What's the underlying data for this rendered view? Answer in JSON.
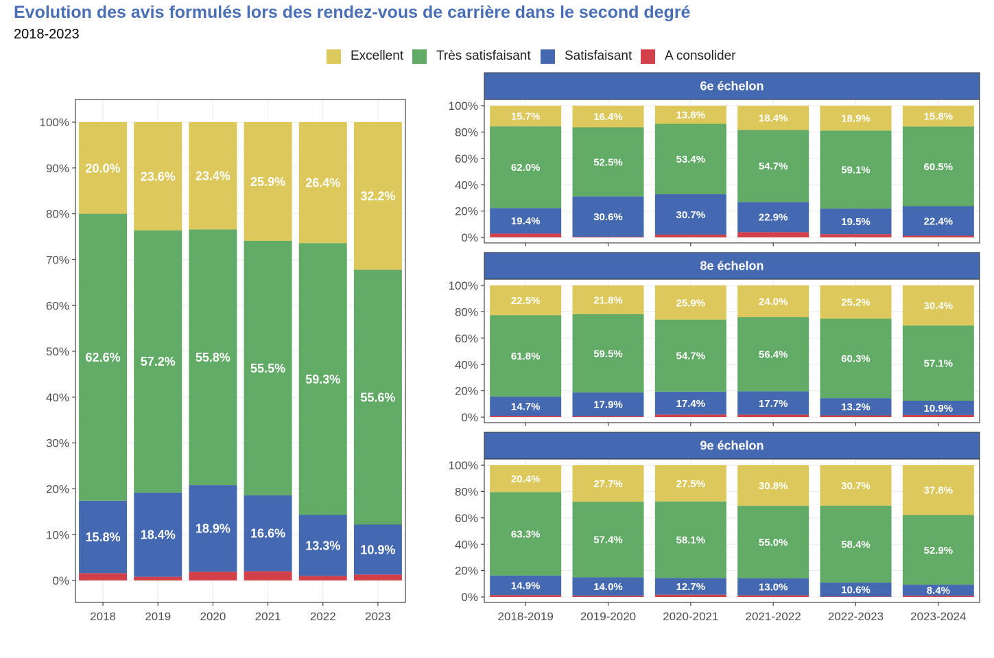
{
  "header": {
    "title": "Evolution des avis formulés lors des rendez-vous de carrière dans le second degré",
    "subtitle": "2018-2023"
  },
  "legend": {
    "items": [
      {
        "label": "Excellent",
        "color": "#dcc85b"
      },
      {
        "label": "Très satisfaisant",
        "color": "#61ab66"
      },
      {
        "label": "Satisfaisant",
        "color": "#4469b0"
      },
      {
        "label": "A consolider",
        "color": "#d2414a"
      }
    ]
  },
  "chart_data": [
    {
      "type": "bar",
      "stacked": true,
      "categories": [
        "2018",
        "2019",
        "2020",
        "2021",
        "2022",
        "2023"
      ],
      "ylim": [
        0,
        100
      ],
      "yticks": [
        "0%",
        "10%",
        "20%",
        "30%",
        "40%",
        "50%",
        "60%",
        "70%",
        "80%",
        "90%",
        "100%"
      ],
      "series": [
        {
          "name": "A consolider",
          "color": "#d2414a",
          "values": [
            1.6,
            0.8,
            1.9,
            2.0,
            1.0,
            1.3
          ],
          "labels": [
            "",
            "",
            "",
            "",
            "",
            ""
          ]
        },
        {
          "name": "Satisfaisant",
          "color": "#4469b0",
          "values": [
            15.8,
            18.4,
            18.9,
            16.6,
            13.3,
            10.9
          ],
          "labels": [
            "15.8%",
            "18.4%",
            "18.9%",
            "16.6%",
            "13.3%",
            "10.9%"
          ]
        },
        {
          "name": "Très satisfaisant",
          "color": "#61ab66",
          "values": [
            62.6,
            57.2,
            55.8,
            55.5,
            59.3,
            55.6
          ],
          "labels": [
            "62.6%",
            "57.2%",
            "55.8%",
            "55.5%",
            "59.3%",
            "55.6%"
          ]
        },
        {
          "name": "Excellent",
          "color": "#dcc85b",
          "values": [
            20.0,
            23.6,
            23.4,
            25.9,
            26.4,
            32.2
          ],
          "labels": [
            "20.0%",
            "23.6%",
            "23.4%",
            "25.9%",
            "26.4%",
            "32.2%"
          ]
        }
      ]
    },
    {
      "type": "bar",
      "stacked": true,
      "facet": "6e échelon",
      "categories": [
        "2018-2019",
        "2019-2020",
        "2020-2021",
        "2021-2022",
        "2022-2023",
        "2023-2024"
      ],
      "ylim": [
        0,
        100
      ],
      "yticks": [
        "0%",
        "20%",
        "40%",
        "60%",
        "80%",
        "100%"
      ],
      "series": [
        {
          "name": "A consolider",
          "color": "#d2414a",
          "values": [
            2.9,
            0.5,
            2.1,
            4.0,
            2.5,
            1.3
          ],
          "labels": [
            "",
            "",
            "",
            "",
            "",
            ""
          ]
        },
        {
          "name": "Satisfaisant",
          "color": "#4469b0",
          "values": [
            19.4,
            30.6,
            30.7,
            22.9,
            19.5,
            22.4
          ],
          "labels": [
            "19.4%",
            "30.6%",
            "30.7%",
            "22.9%",
            "19.5%",
            "22.4%"
          ]
        },
        {
          "name": "Très satisfaisant",
          "color": "#61ab66",
          "values": [
            62.0,
            52.5,
            53.4,
            54.7,
            59.1,
            60.5
          ],
          "labels": [
            "62.0%",
            "52.5%",
            "53.4%",
            "54.7%",
            "59.1%",
            "60.5%"
          ]
        },
        {
          "name": "Excellent",
          "color": "#dcc85b",
          "values": [
            15.7,
            16.4,
            13.8,
            18.4,
            18.9,
            15.8
          ],
          "labels": [
            "15.7%",
            "16.4%",
            "13.8%",
            "18.4%",
            "18.9%",
            "15.8%"
          ]
        }
      ]
    },
    {
      "type": "bar",
      "stacked": true,
      "facet": "8e échelon",
      "categories": [
        "2018-2019",
        "2019-2020",
        "2020-2021",
        "2021-2022",
        "2022-2023",
        "2023-2024"
      ],
      "ylim": [
        0,
        100
      ],
      "yticks": [
        "0%",
        "20%",
        "40%",
        "60%",
        "80%",
        "100%"
      ],
      "series": [
        {
          "name": "A consolider",
          "color": "#d2414a",
          "values": [
            1.0,
            0.8,
            2.0,
            1.9,
            1.3,
            1.6
          ],
          "labels": [
            "",
            "",
            "",
            "",
            "",
            ""
          ]
        },
        {
          "name": "Satisfaisant",
          "color": "#4469b0",
          "values": [
            14.7,
            17.9,
            17.4,
            17.7,
            13.2,
            10.9
          ],
          "labels": [
            "14.7%",
            "17.9%",
            "17.4%",
            "17.7%",
            "13.2%",
            "10.9%"
          ]
        },
        {
          "name": "Très satisfaisant",
          "color": "#61ab66",
          "values": [
            61.8,
            59.5,
            54.7,
            56.4,
            60.3,
            57.1
          ],
          "labels": [
            "61.8%",
            "59.5%",
            "54.7%",
            "56.4%",
            "60.3%",
            "57.1%"
          ]
        },
        {
          "name": "Excellent",
          "color": "#dcc85b",
          "values": [
            22.5,
            21.8,
            25.9,
            24.0,
            25.2,
            30.4
          ],
          "labels": [
            "22.5%",
            "21.8%",
            "25.9%",
            "24.0%",
            "25.2%",
            "30.4%"
          ]
        }
      ]
    },
    {
      "type": "bar",
      "stacked": true,
      "facet": "9e échelon",
      "categories": [
        "2018-2019",
        "2019-2020",
        "2020-2021",
        "2021-2022",
        "2022-2023",
        "2023-2024"
      ],
      "ylim": [
        0,
        100
      ],
      "yticks": [
        "0%",
        "20%",
        "40%",
        "60%",
        "80%",
        "100%"
      ],
      "series": [
        {
          "name": "A consolider",
          "color": "#d2414a",
          "values": [
            1.4,
            0.9,
            1.7,
            1.2,
            0.3,
            0.9
          ],
          "labels": [
            "",
            "",
            "",
            "",
            "",
            ""
          ]
        },
        {
          "name": "Satisfaisant",
          "color": "#4469b0",
          "values": [
            14.9,
            14.0,
            12.7,
            13.0,
            10.6,
            8.4
          ],
          "labels": [
            "14.9%",
            "14.0%",
            "12.7%",
            "13.0%",
            "10.6%",
            "8.4%"
          ]
        },
        {
          "name": "Très satisfaisant",
          "color": "#61ab66",
          "values": [
            63.3,
            57.4,
            58.1,
            55.0,
            58.4,
            52.9
          ],
          "labels": [
            "63.3%",
            "57.4%",
            "58.1%",
            "55.0%",
            "58.4%",
            "52.9%"
          ]
        },
        {
          "name": "Excellent",
          "color": "#dcc85b",
          "values": [
            20.4,
            27.7,
            27.5,
            30.8,
            30.7,
            37.8
          ],
          "labels": [
            "20.4%",
            "27.7%",
            "27.5%",
            "30.8%",
            "30.7%",
            "37.8%"
          ]
        }
      ]
    }
  ]
}
